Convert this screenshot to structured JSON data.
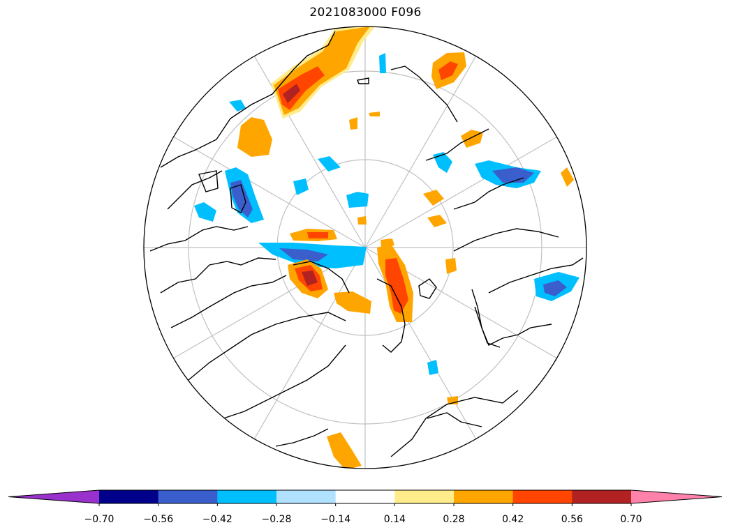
{
  "title": "2021083000 F096",
  "colors": {
    "land": "#000000",
    "graticule": "#c0c0c0",
    "background": "#ffffff"
  },
  "colorbar": {
    "levels": [
      "−0.70",
      "−0.56",
      "−0.42",
      "−0.28",
      "−0.14",
      "0.14",
      "0.28",
      "0.42",
      "0.56",
      "0.70"
    ],
    "colors": [
      "#9932cc",
      "#00008b",
      "#3a5fcd",
      "#00bfff",
      "#b0e2ff",
      "#ffffff",
      "#ffec8b",
      "#ffa500",
      "#ff4500",
      "#b22222",
      "#ff82ab"
    ],
    "extend": "both"
  }
}
